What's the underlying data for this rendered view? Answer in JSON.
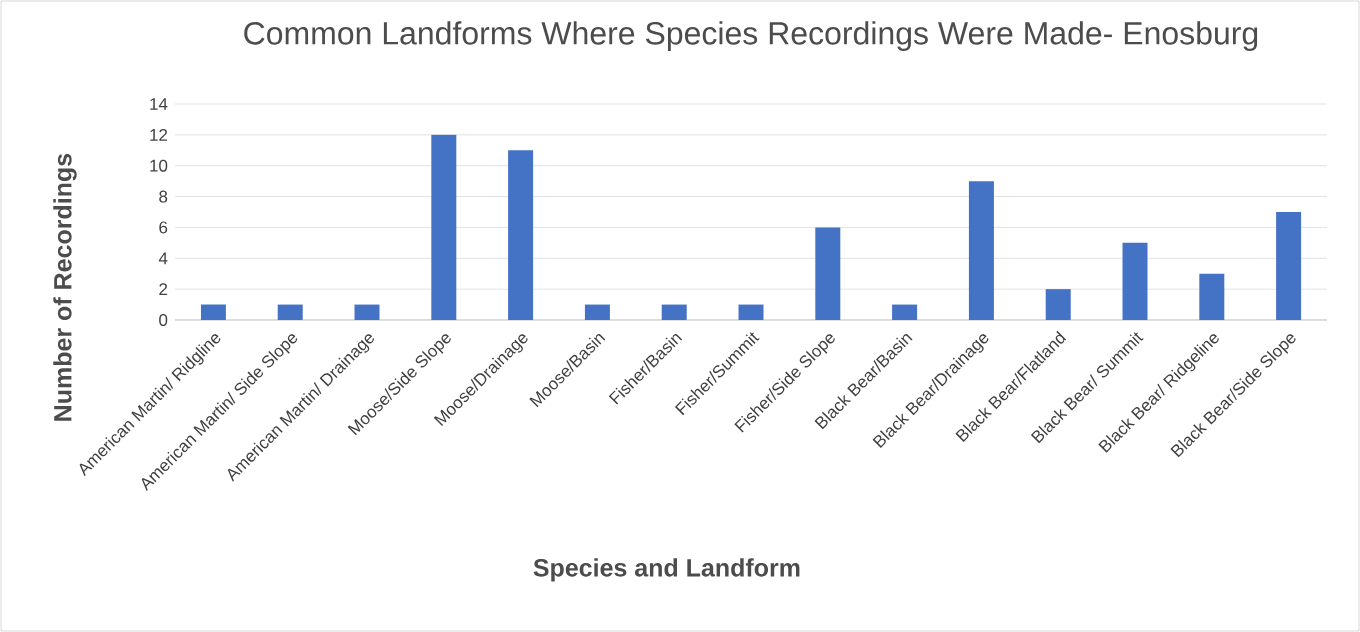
{
  "chart_data": {
    "type": "bar",
    "title": "Common Landforms Where Species Recordings Were Made- Enosburg",
    "xlabel": "Species and Landform",
    "ylabel": "Number of Recordings",
    "categories": [
      "American Martin/ Ridgline",
      "American Martin/ Side Slope",
      "American Martin/ Drainage",
      "Moose/Side Slope",
      "Moose/Drainage",
      "Moose/Basin",
      "Fisher/Basin",
      "Fisher/Summit",
      "Fisher/Side Slope",
      "Black Bear/Basin",
      "Black Bear/Drainage",
      "Black Bear/Flatland",
      "Black Bear/ Summit",
      "Black Bear/ Ridgeline",
      "Black Bear/Side Slope"
    ],
    "values": [
      1,
      1,
      1,
      12,
      11,
      1,
      1,
      1,
      6,
      1,
      9,
      2,
      5,
      3,
      7
    ],
    "color": "#4472c4",
    "ylim": [
      0,
      14
    ],
    "yticks": [
      0,
      2,
      4,
      6,
      8,
      10,
      12,
      14
    ],
    "grid": "y"
  }
}
